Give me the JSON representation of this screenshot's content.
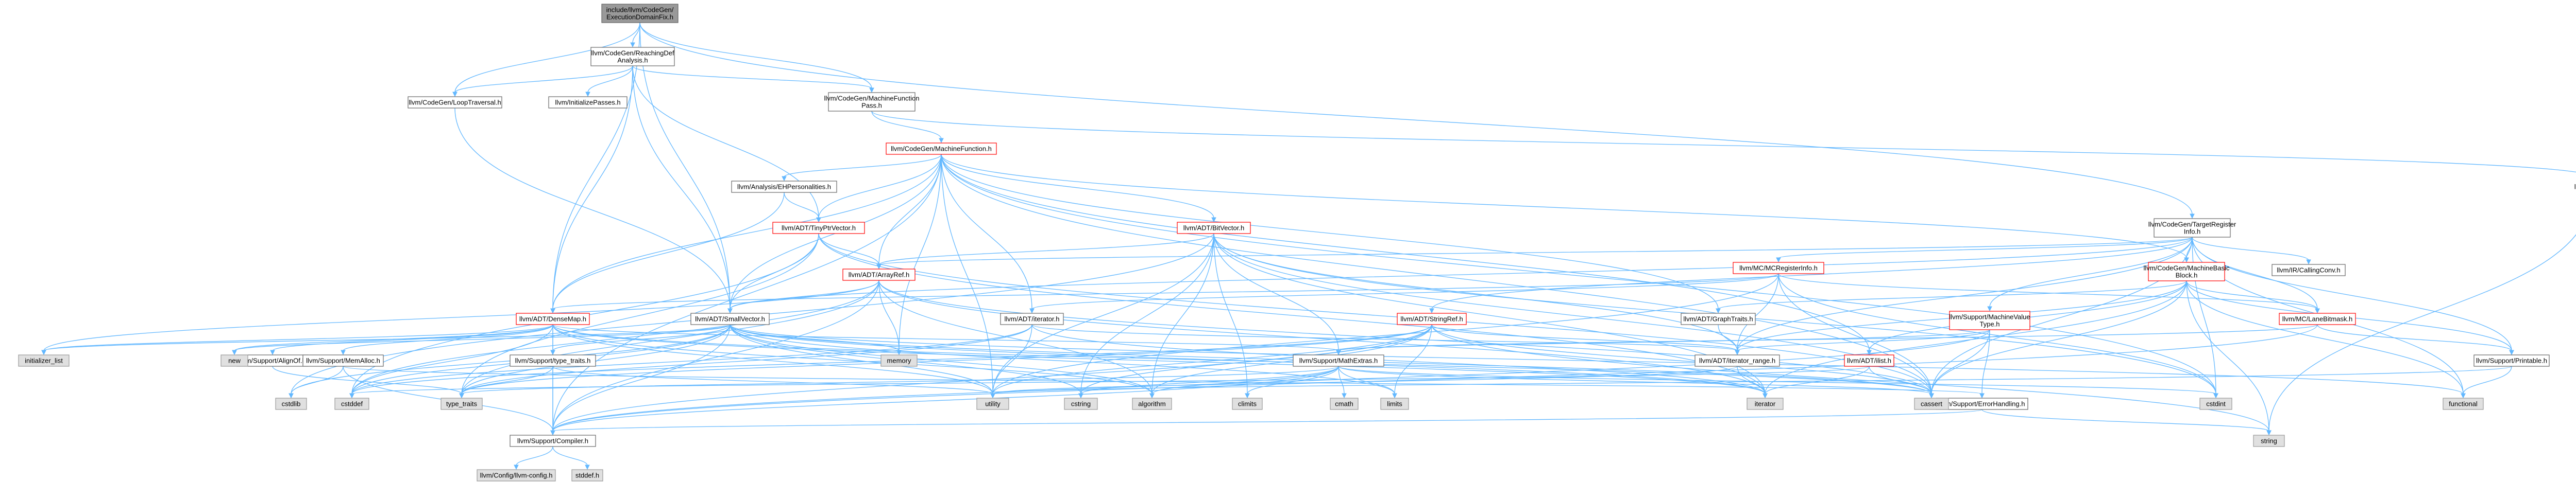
{
  "title": "include/llvm/CodeGen/ExecutionDomainFix.h",
  "colors": {
    "root_fill": "#999999",
    "node_fill": "#ffffff",
    "external_fill": "#e0e0e0",
    "red_border": "#ff0000",
    "gray_border": "#999999",
    "black_border": "#666666",
    "edge": "#63b8ff"
  },
  "nodes": [
    {
      "id": "root",
      "label": [
        "include/llvm/CodeGen/",
        "ExecutionDomainFix.h"
      ],
      "kind": "root"
    },
    {
      "id": "reaching",
      "label": [
        "llvm/CodeGen/ReachingDef",
        "Analysis.h"
      ],
      "kind": "normal"
    },
    {
      "id": "looptrav",
      "label": [
        "llvm/CodeGen/LoopTraversal.h"
      ],
      "kind": "normal"
    },
    {
      "id": "initpasses",
      "label": [
        "llvm/InitializePasses.h"
      ],
      "kind": "normal"
    },
    {
      "id": "mfpass",
      "label": [
        "llvm/CodeGen/MachineFunction",
        "Pass.h"
      ],
      "kind": "normal"
    },
    {
      "id": "mf",
      "label": [
        "llvm/CodeGen/MachineFunction.h"
      ],
      "kind": "red"
    },
    {
      "id": "pass",
      "label": [
        "llvm/Pass.h"
      ],
      "kind": "red"
    },
    {
      "id": "ehpers",
      "label": [
        "llvm/Analysis/EHPersonalities.h"
      ],
      "kind": "normal"
    },
    {
      "id": "tinyptr",
      "label": [
        "llvm/ADT/TinyPtrVector.h"
      ],
      "kind": "red"
    },
    {
      "id": "bitvector",
      "label": [
        "llvm/ADT/BitVector.h"
      ],
      "kind": "red"
    },
    {
      "id": "tri",
      "label": [
        "llvm/CodeGen/TargetRegister",
        "Info.h"
      ],
      "kind": "normal"
    },
    {
      "id": "arrayref",
      "label": [
        "llvm/ADT/ArrayRef.h"
      ],
      "kind": "red"
    },
    {
      "id": "mcreginfo",
      "label": [
        "llvm/MC/MCRegisterInfo.h"
      ],
      "kind": "red"
    },
    {
      "id": "mbb",
      "label": [
        "llvm/CodeGen/MachineBasic",
        "Block.h"
      ],
      "kind": "red"
    },
    {
      "id": "callconv",
      "label": [
        "llvm/IR/CallingConv.h"
      ],
      "kind": "normal"
    },
    {
      "id": "densemap",
      "label": [
        "llvm/ADT/DenseMap.h"
      ],
      "kind": "red"
    },
    {
      "id": "smallvec",
      "label": [
        "llvm/ADT/SmallVector.h"
      ],
      "kind": "normal"
    },
    {
      "id": "iterator",
      "label": [
        "llvm/ADT/iterator.h"
      ],
      "kind": "normal"
    },
    {
      "id": "stringref",
      "label": [
        "llvm/ADT/StringRef.h"
      ],
      "kind": "red"
    },
    {
      "id": "graphtraits",
      "label": [
        "llvm/ADT/GraphTraits.h"
      ],
      "kind": "normal"
    },
    {
      "id": "mvt",
      "label": [
        "llvm/Support/MachineValue",
        "Type.h"
      ],
      "kind": "red"
    },
    {
      "id": "lanebitmask",
      "label": [
        "llvm/MC/LaneBitmask.h"
      ],
      "kind": "red"
    },
    {
      "id": "alignof",
      "label": [
        "llvm/Support/AlignOf.h"
      ],
      "kind": "normal"
    },
    {
      "id": "memalloc",
      "label": [
        "llvm/Support/MemAlloc.h"
      ],
      "kind": "normal"
    },
    {
      "id": "typetraits",
      "label": [
        "llvm/Support/type_traits.h"
      ],
      "kind": "normal"
    },
    {
      "id": "mathextras",
      "label": [
        "llvm/Support/MathExtras.h"
      ],
      "kind": "normal"
    },
    {
      "id": "iterrange",
      "label": [
        "llvm/ADT/iterator_range.h"
      ],
      "kind": "normal"
    },
    {
      "id": "ilist",
      "label": [
        "llvm/ADT/ilist.h"
      ],
      "kind": "red"
    },
    {
      "id": "printable",
      "label": [
        "llvm/Support/Printable.h"
      ],
      "kind": "normal"
    },
    {
      "id": "errhandling",
      "label": [
        "llvm/Support/ErrorHandling.h"
      ],
      "kind": "normal"
    },
    {
      "id": "compiler",
      "label": [
        "llvm/Support/Compiler.h"
      ],
      "kind": "normal"
    },
    {
      "id": "llvmconfig",
      "label": [
        "llvm/Config/llvm-config.h"
      ],
      "kind": "gray"
    },
    {
      "id": "stddef",
      "label": [
        "stddef.h"
      ],
      "kind": "gray"
    },
    {
      "id": "initlist",
      "label": [
        "initializer_list"
      ],
      "kind": "gray"
    },
    {
      "id": "new",
      "label": [
        "new"
      ],
      "kind": "gray"
    },
    {
      "id": "cstdlib",
      "label": [
        "cstdlib"
      ],
      "kind": "gray"
    },
    {
      "id": "cstddef",
      "label": [
        "cstddef"
      ],
      "kind": "gray"
    },
    {
      "id": "typetraitsstd",
      "label": [
        "type_traits"
      ],
      "kind": "gray"
    },
    {
      "id": "memory",
      "label": [
        "memory"
      ],
      "kind": "gray"
    },
    {
      "id": "utility",
      "label": [
        "utility"
      ],
      "kind": "gray"
    },
    {
      "id": "cstring",
      "label": [
        "cstring"
      ],
      "kind": "gray"
    },
    {
      "id": "algorithm",
      "label": [
        "algorithm"
      ],
      "kind": "gray"
    },
    {
      "id": "climits",
      "label": [
        "climits"
      ],
      "kind": "gray"
    },
    {
      "id": "cmath",
      "label": [
        "cmath"
      ],
      "kind": "gray"
    },
    {
      "id": "limits",
      "label": [
        "limits"
      ],
      "kind": "gray"
    },
    {
      "id": "iteratorstd",
      "label": [
        "iterator"
      ],
      "kind": "gray"
    },
    {
      "id": "cassert",
      "label": [
        "cassert"
      ],
      "kind": "gray"
    },
    {
      "id": "cstdint",
      "label": [
        "cstdint"
      ],
      "kind": "gray"
    },
    {
      "id": "functional",
      "label": [
        "functional"
      ],
      "kind": "gray"
    },
    {
      "id": "string",
      "label": [
        "string"
      ],
      "kind": "gray"
    }
  ],
  "edges": [
    [
      "root",
      "reaching"
    ],
    [
      "root",
      "looptrav"
    ],
    [
      "root",
      "mfpass"
    ],
    [
      "root",
      "tri"
    ],
    [
      "root",
      "densemap"
    ],
    [
      "root",
      "smallvec"
    ],
    [
      "reaching",
      "looptrav"
    ],
    [
      "reaching",
      "initpasses"
    ],
    [
      "reaching",
      "mfpass"
    ],
    [
      "reaching",
      "tinyptr"
    ],
    [
      "reaching",
      "densemap"
    ],
    [
      "reaching",
      "smallvec"
    ],
    [
      "looptrav",
      "smallvec"
    ],
    [
      "mfpass",
      "mf"
    ],
    [
      "mfpass",
      "pass"
    ],
    [
      "mf",
      "ehpers"
    ],
    [
      "mf",
      "tinyptr"
    ],
    [
      "mf",
      "bitvector"
    ],
    [
      "mf",
      "arrayref"
    ],
    [
      "mf",
      "mbb"
    ],
    [
      "mf",
      "densemap"
    ],
    [
      "mf",
      "smallvec"
    ],
    [
      "mf",
      "iterator"
    ],
    [
      "mf",
      "graphtraits"
    ],
    [
      "mf",
      "ilist"
    ],
    [
      "mf",
      "memory"
    ],
    [
      "mf",
      "compiler"
    ],
    [
      "mf",
      "cassert"
    ],
    [
      "mf",
      "utility"
    ],
    [
      "mf",
      "cstdint"
    ],
    [
      "pass",
      "string"
    ],
    [
      "ehpers",
      "tinyptr"
    ],
    [
      "ehpers",
      "densemap"
    ],
    [
      "tinyptr",
      "arrayref"
    ],
    [
      "tinyptr",
      "smallvec"
    ],
    [
      "tinyptr",
      "cassert"
    ],
    [
      "tinyptr",
      "cstddef"
    ],
    [
      "tinyptr",
      "iteratorstd"
    ],
    [
      "tinyptr",
      "typetraitsstd"
    ],
    [
      "bitvector",
      "arrayref"
    ],
    [
      "bitvector",
      "iterrange"
    ],
    [
      "bitvector",
      "mathextras"
    ],
    [
      "bitvector",
      "algorithm"
    ],
    [
      "bitvector",
      "cassert"
    ],
    [
      "bitvector",
      "climits"
    ],
    [
      "bitvector",
      "cstdint"
    ],
    [
      "bitvector",
      "cstdlib"
    ],
    [
      "bitvector",
      "cstring"
    ],
    [
      "bitvector",
      "iteratorstd"
    ],
    [
      "bitvector",
      "utility"
    ],
    [
      "tri",
      "arrayref"
    ],
    [
      "tri",
      "smallvec"
    ],
    [
      "tri",
      "iterrange"
    ],
    [
      "tri",
      "mbb"
    ],
    [
      "tri",
      "mvt"
    ],
    [
      "tri",
      "mcreginfo"
    ],
    [
      "tri",
      "lanebitmask"
    ],
    [
      "tri",
      "callconv"
    ],
    [
      "tri",
      "printable"
    ],
    [
      "tri",
      "cassert"
    ],
    [
      "tri",
      "cstdint"
    ],
    [
      "tri",
      "functional"
    ],
    [
      "tri",
      "stringref"
    ],
    [
      "arrayref",
      "smallvec"
    ],
    [
      "arrayref",
      "compiler"
    ],
    [
      "arrayref",
      "algorithm"
    ],
    [
      "arrayref",
      "cassert"
    ],
    [
      "arrayref",
      "cstddef"
    ],
    [
      "arrayref",
      "initlist"
    ],
    [
      "arrayref",
      "iteratorstd"
    ],
    [
      "arrayref",
      "memory"
    ],
    [
      "arrayref",
      "typetraitsstd"
    ],
    [
      "arrayref",
      "vector"
    ],
    [
      "mcreginfo",
      "densemap"
    ],
    [
      "mcreginfo",
      "iterator"
    ],
    [
      "mcreginfo",
      "iterrange"
    ],
    [
      "mcreginfo",
      "lanebitmask"
    ],
    [
      "mcreginfo",
      "cassert"
    ],
    [
      "mcreginfo",
      "cstdint"
    ],
    [
      "mcreginfo",
      "utility"
    ],
    [
      "mbb",
      "graphtraits"
    ],
    [
      "mbb",
      "ilist"
    ],
    [
      "mbb",
      "iterrange"
    ],
    [
      "mbb",
      "lanebitmask"
    ],
    [
      "mbb",
      "printable"
    ],
    [
      "mbb",
      "cassert"
    ],
    [
      "mbb",
      "functional"
    ],
    [
      "mbb",
      "iteratorstd"
    ],
    [
      "mbb",
      "string"
    ],
    [
      "densemap",
      "alignof"
    ],
    [
      "densemap",
      "compiler"
    ],
    [
      "densemap",
      "mathextras"
    ],
    [
      "densemap",
      "memalloc"
    ],
    [
      "densemap",
      "typetraits"
    ],
    [
      "densemap",
      "algorithm"
    ],
    [
      "densemap",
      "cassert"
    ],
    [
      "densemap",
      "cstddef"
    ],
    [
      "densemap",
      "initlist"
    ],
    [
      "densemap",
      "iteratorstd"
    ],
    [
      "densemap",
      "new"
    ],
    [
      "densemap",
      "utility"
    ],
    [
      "smallvec",
      "compiler"
    ],
    [
      "smallvec",
      "typetraits"
    ],
    [
      "smallvec",
      "algorithm"
    ],
    [
      "smallvec",
      "cassert"
    ],
    [
      "smallvec",
      "cstddef"
    ],
    [
      "smallvec",
      "cstdlib"
    ],
    [
      "smallvec",
      "cstring"
    ],
    [
      "smallvec",
      "functional"
    ],
    [
      "smallvec",
      "initlist"
    ],
    [
      "smallvec",
      "iteratorstd"
    ],
    [
      "smallvec",
      "limits"
    ],
    [
      "smallvec",
      "memory"
    ],
    [
      "smallvec",
      "new"
    ],
    [
      "smallvec",
      "typetraitsstd"
    ],
    [
      "smallvec",
      "utility"
    ],
    [
      "iterator",
      "iterrange"
    ],
    [
      "iterator",
      "cstddef"
    ],
    [
      "iterator",
      "iteratorstd"
    ],
    [
      "iterator",
      "typetraitsstd"
    ],
    [
      "iterator",
      "utility"
    ],
    [
      "stringref",
      "compiler"
    ],
    [
      "stringref",
      "iterrange"
    ],
    [
      "stringref",
      "algorithm"
    ],
    [
      "stringref",
      "cassert"
    ],
    [
      "stringref",
      "cstddef"
    ],
    [
      "stringref",
      "cstring"
    ],
    [
      "stringref",
      "limits"
    ],
    [
      "stringref",
      "string"
    ],
    [
      "stringref",
      "typetraitsstd"
    ],
    [
      "stringref",
      "utility"
    ],
    [
      "graphtraits",
      "iterrange"
    ],
    [
      "mvt",
      "compiler"
    ],
    [
      "mvt",
      "errhandling"
    ],
    [
      "mvt",
      "mathextras"
    ],
    [
      "mvt",
      "iterrange"
    ],
    [
      "mvt",
      "cassert"
    ],
    [
      "lanebitmask",
      "compiler"
    ],
    [
      "lanebitmask",
      "mathextras"
    ],
    [
      "lanebitmask",
      "printable"
    ],
    [
      "alignof",
      "typetraitsstd"
    ],
    [
      "memalloc",
      "compiler"
    ],
    [
      "memalloc",
      "errhandling"
    ],
    [
      "memalloc",
      "cstdlib"
    ],
    [
      "typetraits",
      "compiler"
    ],
    [
      "typetraits",
      "typetraitsstd"
    ],
    [
      "typetraits",
      "utility"
    ],
    [
      "mathextras",
      "compiler"
    ],
    [
      "mathextras",
      "algorithm"
    ],
    [
      "mathextras",
      "cassert"
    ],
    [
      "mathextras",
      "climits"
    ],
    [
      "mathextras",
      "cmath"
    ],
    [
      "mathextras",
      "cstdint"
    ],
    [
      "mathextras",
      "cstring"
    ],
    [
      "mathextras",
      "limits"
    ],
    [
      "mathextras",
      "typetraitsstd"
    ],
    [
      "iterrange",
      "iteratorstd"
    ],
    [
      "iterrange",
      "utility"
    ],
    [
      "ilist",
      "cassert"
    ],
    [
      "ilist",
      "cstddef"
    ],
    [
      "ilist",
      "iteratorstd"
    ],
    [
      "printable",
      "functional"
    ],
    [
      "printable",
      "utility"
    ],
    [
      "errhandling",
      "compiler"
    ],
    [
      "errhandling",
      "string"
    ],
    [
      "compiler",
      "llvmconfig"
    ],
    [
      "compiler",
      "stddef"
    ]
  ]
}
